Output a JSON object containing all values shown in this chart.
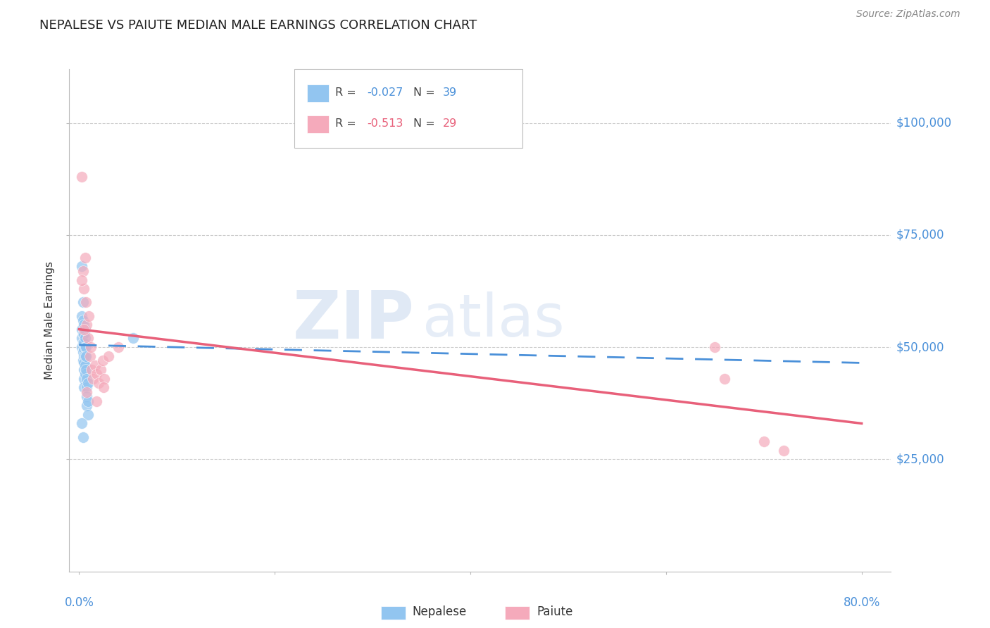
{
  "title": "NEPALESE VS PAIUTE MEDIAN MALE EARNINGS CORRELATION CHART",
  "source": "Source: ZipAtlas.com",
  "ylabel_text": "Median Male Earnings",
  "ytick_labels": [
    "$25,000",
    "$50,000",
    "$75,000",
    "$100,000"
  ],
  "ytick_values": [
    25000,
    50000,
    75000,
    100000
  ],
  "ylim": [
    0,
    112000
  ],
  "xlim": [
    -0.01,
    0.83
  ],
  "legend1_r": "-0.027",
  "legend1_n": "39",
  "legend2_r": "-0.513",
  "legend2_n": "29",
  "blue_scatter_x": [
    0.003,
    0.003,
    0.003,
    0.003,
    0.003,
    0.004,
    0.004,
    0.004,
    0.004,
    0.004,
    0.004,
    0.005,
    0.005,
    0.005,
    0.005,
    0.005,
    0.005,
    0.005,
    0.005,
    0.005,
    0.006,
    0.006,
    0.006,
    0.006,
    0.006,
    0.006,
    0.007,
    0.007,
    0.007,
    0.008,
    0.008,
    0.008,
    0.008,
    0.009,
    0.009,
    0.009,
    0.055,
    0.003,
    0.004
  ],
  "blue_scatter_y": [
    68000,
    57000,
    54000,
    52000,
    50000,
    60000,
    56000,
    53000,
    51000,
    49000,
    47000,
    55000,
    53000,
    51000,
    49500,
    48000,
    46500,
    45000,
    43000,
    41000,
    54000,
    52000,
    50000,
    48000,
    46000,
    44000,
    50000,
    48000,
    45000,
    43000,
    41000,
    39000,
    37000,
    42000,
    38000,
    35000,
    52000,
    33000,
    30000
  ],
  "pink_scatter_x": [
    0.003,
    0.004,
    0.005,
    0.006,
    0.007,
    0.008,
    0.009,
    0.01,
    0.011,
    0.012,
    0.013,
    0.014,
    0.016,
    0.018,
    0.02,
    0.022,
    0.024,
    0.026,
    0.03,
    0.04,
    0.003,
    0.005,
    0.008,
    0.018,
    0.025,
    0.65,
    0.66,
    0.7,
    0.72
  ],
  "pink_scatter_y": [
    88000,
    67000,
    63000,
    70000,
    60000,
    55000,
    52000,
    57000,
    48000,
    50000,
    45000,
    43000,
    46000,
    44000,
    42000,
    45000,
    47000,
    43000,
    48000,
    50000,
    65000,
    54000,
    40000,
    38000,
    41000,
    50000,
    43000,
    29000,
    27000
  ],
  "blue_line_x": [
    0.0,
    0.8
  ],
  "blue_line_y": [
    50500,
    46500
  ],
  "pink_line_x": [
    0.0,
    0.8
  ],
  "pink_line_y": [
    54000,
    33000
  ],
  "blue_color": "#92C5F0",
  "pink_color": "#F5AABB",
  "blue_line_color": "#4A90D9",
  "pink_line_color": "#E8607A",
  "grid_color": "#CCCCCC",
  "watermark_zip": "ZIP",
  "watermark_atlas": "atlas",
  "background_color": "#FFFFFF"
}
